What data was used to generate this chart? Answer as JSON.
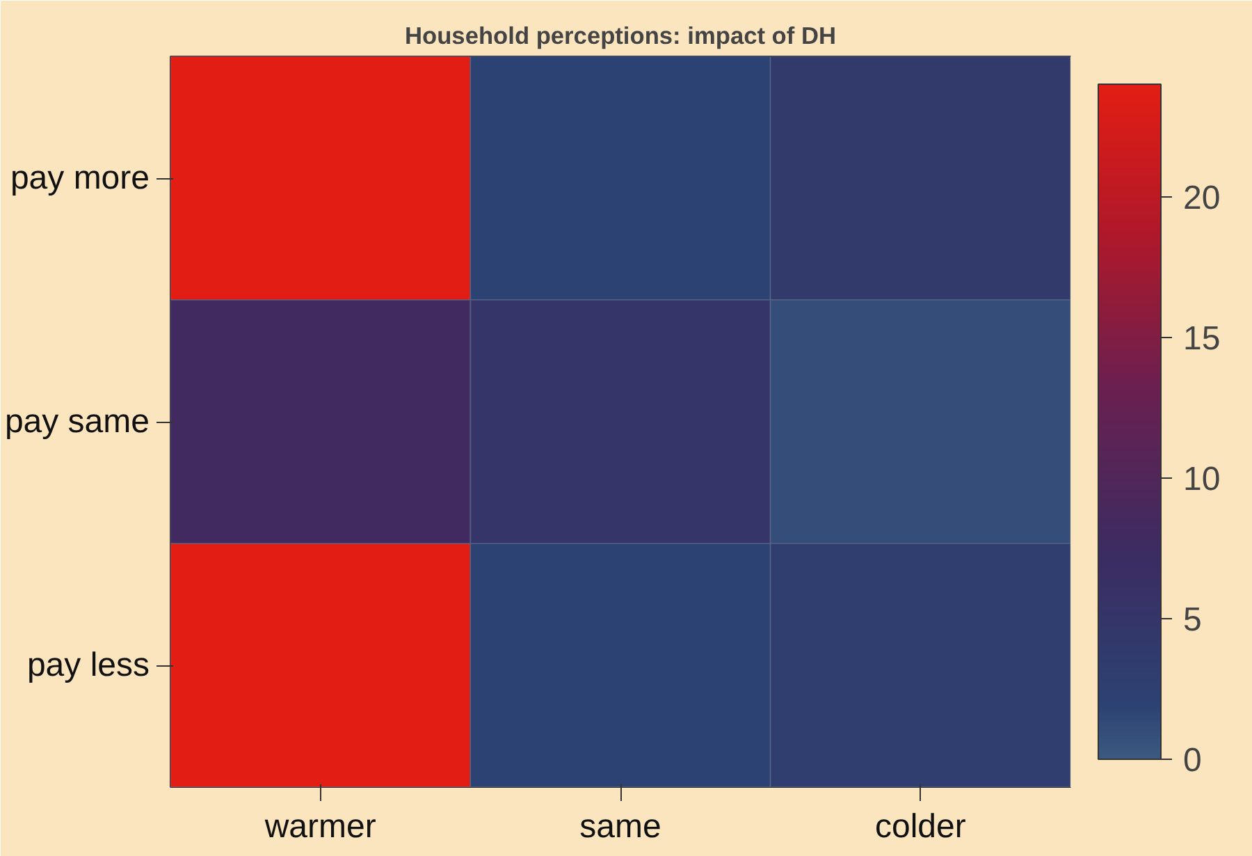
{
  "chart_data": {
    "type": "heatmap",
    "title": "Household perceptions: impact of DH",
    "categories": [
      "warmer",
      "same",
      "colder"
    ],
    "y_categories": [
      "pay more",
      "pay same",
      "pay less"
    ],
    "cells": [
      [
        24,
        2,
        4
      ],
      [
        8,
        5,
        1
      ],
      [
        24,
        2,
        3
      ]
    ],
    "clim": [
      0,
      24
    ],
    "cticks": [
      0,
      5,
      10,
      15,
      20
    ]
  }
}
